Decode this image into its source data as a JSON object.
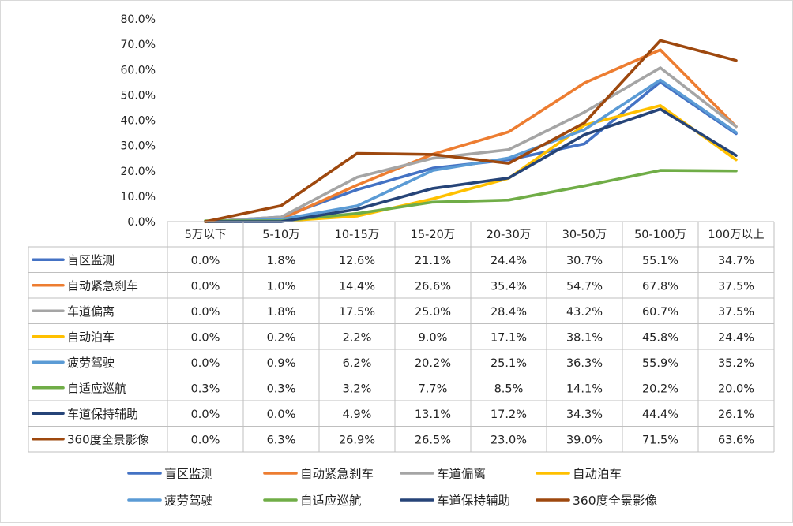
{
  "chart_data": {
    "type": "line",
    "ylim": [
      0,
      80
    ],
    "y_tick_labels": [
      "0.0%",
      "10.0%",
      "20.0%",
      "30.0%",
      "40.0%",
      "50.0%",
      "60.0%",
      "70.0%",
      "80.0%"
    ],
    "categories": [
      "5万以下",
      "5-10万",
      "10-15万",
      "15-20万",
      "20-30万",
      "30-50万",
      "50-100万",
      "100万以上"
    ],
    "grid": false,
    "legend_position": "bottom",
    "data_table": true,
    "series": [
      {
        "name": "盲区监测",
        "color": "#4472C4",
        "values": [
          0.0,
          1.8,
          12.6,
          21.1,
          24.4,
          30.7,
          55.1,
          34.7
        ],
        "labels": [
          "0.0%",
          "1.8%",
          "12.6%",
          "21.1%",
          "24.4%",
          "30.7%",
          "55.1%",
          "34.7%"
        ]
      },
      {
        "name": "自动紧急刹车",
        "color": "#ED7D31",
        "values": [
          0.0,
          1.0,
          14.4,
          26.6,
          35.4,
          54.7,
          67.8,
          37.5
        ],
        "labels": [
          "0.0%",
          "1.0%",
          "14.4%",
          "26.6%",
          "35.4%",
          "54.7%",
          "67.8%",
          "37.5%"
        ]
      },
      {
        "name": "车道偏离",
        "color": "#A5A5A5",
        "values": [
          0.0,
          1.8,
          17.5,
          25.0,
          28.4,
          43.2,
          60.7,
          37.5
        ],
        "labels": [
          "0.0%",
          "1.8%",
          "17.5%",
          "25.0%",
          "28.4%",
          "43.2%",
          "60.7%",
          "37.5%"
        ]
      },
      {
        "name": "自动泊车",
        "color": "#FFC000",
        "values": [
          0.0,
          0.2,
          2.2,
          9.0,
          17.1,
          38.1,
          45.8,
          24.4
        ],
        "labels": [
          "0.0%",
          "0.2%",
          "2.2%",
          "9.0%",
          "17.1%",
          "38.1%",
          "45.8%",
          "24.4%"
        ]
      },
      {
        "name": "疲劳驾驶",
        "color": "#5B9BD5",
        "values": [
          0.0,
          0.9,
          6.2,
          20.2,
          25.1,
          36.3,
          55.9,
          35.2
        ],
        "labels": [
          "0.0%",
          "0.9%",
          "6.2%",
          "20.2%",
          "25.1%",
          "36.3%",
          "55.9%",
          "35.2%"
        ]
      },
      {
        "name": "自适应巡航",
        "color": "#70AD47",
        "values": [
          0.3,
          0.3,
          3.2,
          7.7,
          8.5,
          14.1,
          20.2,
          20.0
        ],
        "labels": [
          "0.3%",
          "0.3%",
          "3.2%",
          "7.7%",
          "8.5%",
          "14.1%",
          "20.2%",
          "20.0%"
        ]
      },
      {
        "name": "车道保持辅助",
        "color": "#264478",
        "values": [
          0.0,
          0.0,
          4.9,
          13.1,
          17.2,
          34.3,
          44.4,
          26.1
        ],
        "labels": [
          "0.0%",
          "0.0%",
          "4.9%",
          "13.1%",
          "17.2%",
          "34.3%",
          "44.4%",
          "26.1%"
        ]
      },
      {
        "name": "360度全景影像",
        "color": "#9E480E",
        "values": [
          0.0,
          6.3,
          26.9,
          26.5,
          23.0,
          39.0,
          71.5,
          63.6
        ],
        "labels": [
          "0.0%",
          "6.3%",
          "26.9%",
          "26.5%",
          "23.0%",
          "39.0%",
          "71.5%",
          "63.6%"
        ]
      }
    ]
  }
}
